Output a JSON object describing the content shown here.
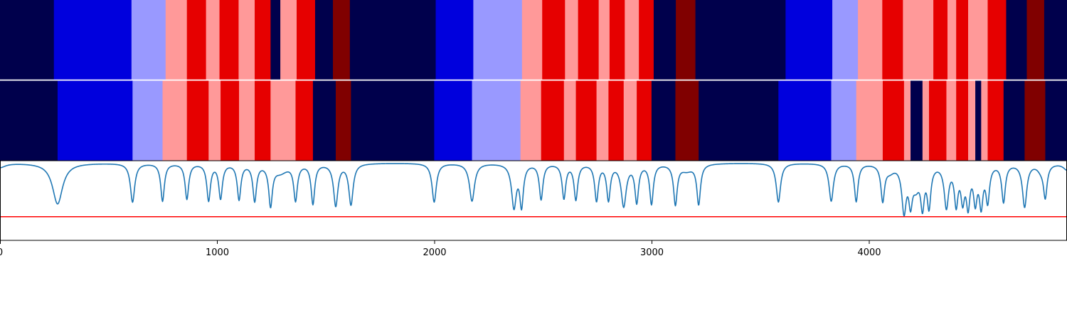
{
  "chart_data": [
    {
      "type": "heatmap",
      "name": "segmentation-track-top",
      "colors": {
        "0": "#00004c",
        "1": "#0000dd",
        "2": "#9999ff",
        "3": "#ff9999",
        "4": "#e60000",
        "5": "#800000"
      },
      "segments": [
        [
          0,
          248,
          0
        ],
        [
          248,
          605,
          1
        ],
        [
          605,
          762,
          2
        ],
        [
          762,
          860,
          3
        ],
        [
          860,
          948,
          4
        ],
        [
          948,
          1010,
          3
        ],
        [
          1010,
          1098,
          4
        ],
        [
          1098,
          1172,
          3
        ],
        [
          1172,
          1245,
          4
        ],
        [
          1245,
          1290,
          0
        ],
        [
          1290,
          1365,
          3
        ],
        [
          1365,
          1450,
          4
        ],
        [
          1450,
          1532,
          0
        ],
        [
          1532,
          1610,
          5
        ],
        [
          1610,
          2005,
          0
        ],
        [
          2005,
          2178,
          1
        ],
        [
          2178,
          2402,
          2
        ],
        [
          2402,
          2495,
          3
        ],
        [
          2495,
          2600,
          4
        ],
        [
          2600,
          2660,
          3
        ],
        [
          2660,
          2755,
          4
        ],
        [
          2755,
          2805,
          3
        ],
        [
          2805,
          2875,
          4
        ],
        [
          2875,
          2940,
          3
        ],
        [
          2940,
          3008,
          4
        ],
        [
          3008,
          3110,
          0
        ],
        [
          3110,
          3200,
          5
        ],
        [
          3200,
          3615,
          0
        ],
        [
          3615,
          3830,
          1
        ],
        [
          3830,
          3948,
          2
        ],
        [
          3948,
          4060,
          3
        ],
        [
          4060,
          4155,
          4
        ],
        [
          4155,
          4295,
          3
        ],
        [
          4295,
          4360,
          4
        ],
        [
          4360,
          4400,
          3
        ],
        [
          4400,
          4455,
          4
        ],
        [
          4455,
          4545,
          3
        ],
        [
          4545,
          4630,
          4
        ],
        [
          4630,
          4725,
          0
        ],
        [
          4725,
          4805,
          5
        ],
        [
          4805,
          4910,
          0
        ]
      ]
    },
    {
      "type": "heatmap",
      "name": "segmentation-track-bottom",
      "colors": {
        "0": "#00004c",
        "1": "#0000dd",
        "2": "#9999ff",
        "3": "#ff9999",
        "4": "#e60000",
        "5": "#800000"
      },
      "segments": [
        [
          0,
          265,
          0
        ],
        [
          265,
          610,
          1
        ],
        [
          610,
          748,
          2
        ],
        [
          748,
          860,
          3
        ],
        [
          860,
          960,
          4
        ],
        [
          960,
          1015,
          3
        ],
        [
          1015,
          1100,
          4
        ],
        [
          1100,
          1172,
          3
        ],
        [
          1172,
          1245,
          4
        ],
        [
          1245,
          1360,
          3
        ],
        [
          1360,
          1440,
          4
        ],
        [
          1440,
          1545,
          0
        ],
        [
          1545,
          1615,
          5
        ],
        [
          1615,
          1998,
          0
        ],
        [
          1998,
          2172,
          1
        ],
        [
          2172,
          2395,
          2
        ],
        [
          2395,
          2490,
          3
        ],
        [
          2490,
          2595,
          4
        ],
        [
          2595,
          2650,
          3
        ],
        [
          2650,
          2745,
          4
        ],
        [
          2745,
          2800,
          3
        ],
        [
          2800,
          2870,
          4
        ],
        [
          2870,
          2930,
          3
        ],
        [
          2930,
          2998,
          4
        ],
        [
          2998,
          3108,
          0
        ],
        [
          3108,
          3215,
          5
        ],
        [
          3215,
          3582,
          0
        ],
        [
          3582,
          3825,
          1
        ],
        [
          3825,
          3940,
          2
        ],
        [
          3940,
          4062,
          3
        ],
        [
          4062,
          4160,
          4
        ],
        [
          4160,
          4190,
          3
        ],
        [
          4190,
          4245,
          0
        ],
        [
          4245,
          4275,
          3
        ],
        [
          4275,
          4355,
          4
        ],
        [
          4355,
          4400,
          3
        ],
        [
          4400,
          4455,
          4
        ],
        [
          4455,
          4488,
          3
        ],
        [
          4488,
          4515,
          0
        ],
        [
          4515,
          4545,
          3
        ],
        [
          4545,
          4618,
          4
        ],
        [
          4618,
          4715,
          0
        ],
        [
          4715,
          4810,
          5
        ],
        [
          4810,
          4910,
          0
        ]
      ]
    },
    {
      "type": "line",
      "name": "signal-panel",
      "xlim": [
        0,
        4910
      ],
      "ylim": [
        -0.72,
        0.02
      ],
      "xticks": [
        0,
        1000,
        2000,
        3000,
        4000
      ],
      "xtick_labels": [
        "0",
        "1000",
        "2000",
        "3000",
        "4000"
      ],
      "threshold": -0.5,
      "line_color": "#1f77b4",
      "threshold_color": "#ff0000",
      "baseline": 0,
      "dips": [
        [
          0,
          -0.04,
          30
        ],
        [
          265,
          -0.38,
          28
        ],
        [
          610,
          -0.36,
          12
        ],
        [
          748,
          -0.35,
          10
        ],
        [
          860,
          -0.33,
          10
        ],
        [
          960,
          -0.34,
          10
        ],
        [
          1015,
          -0.32,
          10
        ],
        [
          1100,
          -0.33,
          10
        ],
        [
          1172,
          -0.34,
          10
        ],
        [
          1245,
          -0.37,
          10
        ],
        [
          1290,
          -0.08,
          40
        ],
        [
          1360,
          -0.33,
          10
        ],
        [
          1440,
          -0.37,
          10
        ],
        [
          1545,
          -0.39,
          12
        ],
        [
          1615,
          -0.38,
          12
        ],
        [
          1998,
          -0.36,
          12
        ],
        [
          2172,
          -0.35,
          14
        ],
        [
          2365,
          -0.4,
          13
        ],
        [
          2400,
          -0.38,
          10
        ],
        [
          2490,
          -0.33,
          10
        ],
        [
          2595,
          -0.32,
          10
        ],
        [
          2650,
          -0.33,
          10
        ],
        [
          2745,
          -0.34,
          10
        ],
        [
          2800,
          -0.33,
          10
        ],
        [
          2870,
          -0.39,
          14
        ],
        [
          2930,
          -0.35,
          10
        ],
        [
          2998,
          -0.37,
          10
        ],
        [
          3108,
          -0.37,
          10
        ],
        [
          3160,
          -0.06,
          35
        ],
        [
          3215,
          -0.37,
          10
        ],
        [
          3582,
          -0.36,
          12
        ],
        [
          3825,
          -0.35,
          12
        ],
        [
          3940,
          -0.35,
          10
        ],
        [
          4062,
          -0.33,
          10
        ],
        [
          4095,
          -0.06,
          25
        ],
        [
          4160,
          -0.42,
          12
        ],
        [
          4190,
          -0.3,
          10
        ],
        [
          4215,
          -0.18,
          20
        ],
        [
          4245,
          -0.35,
          10
        ],
        [
          4275,
          -0.37,
          10
        ],
        [
          4355,
          -0.39,
          12
        ],
        [
          4400,
          -0.35,
          10
        ],
        [
          4430,
          -0.3,
          10
        ],
        [
          4455,
          -0.36,
          10
        ],
        [
          4488,
          -0.32,
          10
        ],
        [
          4515,
          -0.36,
          10
        ],
        [
          4545,
          -0.33,
          10
        ],
        [
          4618,
          -0.35,
          10
        ],
        [
          4715,
          -0.4,
          12
        ],
        [
          4790,
          -0.05,
          20
        ],
        [
          4810,
          -0.3,
          10
        ],
        [
          4910,
          -0.06,
          20
        ]
      ]
    }
  ]
}
